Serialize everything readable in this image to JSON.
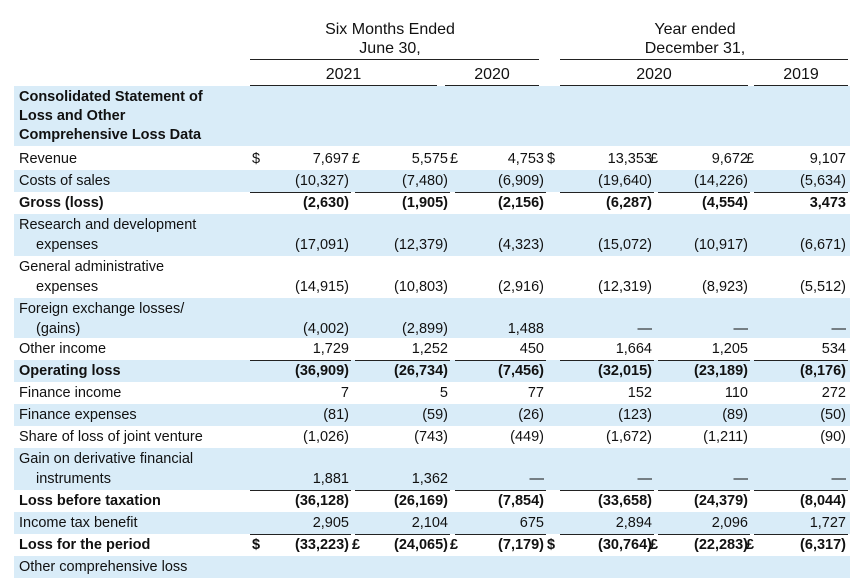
{
  "headers": {
    "group1_line1": "Six Months Ended",
    "group1_line2": "June 30,",
    "group2_line1": "Year ended",
    "group2_line2": "December 31,",
    "years": [
      "2021",
      "2020",
      "2020",
      "2019"
    ]
  },
  "section_title": [
    "Consolidated Statement of",
    "Loss and Other",
    "Comprehensive Loss Data"
  ],
  "rows": [
    {
      "label": [
        "Revenue"
      ],
      "bold": false,
      "vals": [
        "7,697",
        "5,575",
        "4,753",
        "13,353",
        "9,672",
        "9,107"
      ],
      "syms": [
        "$",
        "£",
        "£",
        "$",
        "£",
        "£"
      ]
    },
    {
      "label": [
        "Costs of sales"
      ],
      "bold": false,
      "vals": [
        "(10,327)",
        "(7,480)",
        "(6,909)",
        "(19,640)",
        "(14,226)",
        "(5,634)"
      ]
    },
    {
      "label": [
        "Gross (loss)"
      ],
      "bold": true,
      "vals": [
        "(2,630)",
        "(1,905)",
        "(2,156)",
        "(6,287)",
        "(4,554)",
        "3,473"
      ]
    },
    {
      "label": [
        "Research and development",
        "expenses"
      ],
      "bold": false,
      "vals": [
        "(17,091)",
        "(12,379)",
        "(4,323)",
        "(15,072)",
        "(10,917)",
        "(6,671)"
      ]
    },
    {
      "label": [
        "General administrative",
        "expenses"
      ],
      "bold": false,
      "vals": [
        "(14,915)",
        "(10,803)",
        "(2,916)",
        "(12,319)",
        "(8,923)",
        "(5,512)"
      ]
    },
    {
      "label": [
        "Foreign exchange losses/",
        "(gains)"
      ],
      "bold": false,
      "vals": [
        "(4,002)",
        "(2,899)",
        "1,488",
        "—",
        "—",
        "—"
      ]
    },
    {
      "label": [
        "Other income"
      ],
      "bold": false,
      "vals": [
        "1,729",
        "1,252",
        "450",
        "1,664",
        "1,205",
        "534"
      ]
    },
    {
      "label": [
        "Operating loss"
      ],
      "bold": true,
      "vals": [
        "(36,909)",
        "(26,734)",
        "(7,456)",
        "(32,015)",
        "(23,189)",
        "(8,176)"
      ]
    },
    {
      "label": [
        "Finance income"
      ],
      "bold": false,
      "vals": [
        "7",
        "5",
        "77",
        "152",
        "110",
        "272"
      ]
    },
    {
      "label": [
        "Finance expenses"
      ],
      "bold": false,
      "vals": [
        "(81)",
        "(59)",
        "(26)",
        "(123)",
        "(89)",
        "(50)"
      ]
    },
    {
      "label": [
        "Share of loss of joint venture"
      ],
      "bold": false,
      "vals": [
        "(1,026)",
        "(743)",
        "(449)",
        "(1,672)",
        "(1,211)",
        "(90)"
      ]
    },
    {
      "label": [
        "Gain on derivative financial",
        "instruments"
      ],
      "bold": false,
      "vals": [
        "1,881",
        "1,362",
        "—",
        "—",
        "—",
        "—"
      ]
    },
    {
      "label": [
        "Loss before taxation"
      ],
      "bold": true,
      "vals": [
        "(36,128)",
        "(26,169)",
        "(7,854)",
        "(33,658)",
        "(24,379)",
        "(8,044)"
      ]
    },
    {
      "label": [
        "Income tax benefit"
      ],
      "bold": false,
      "vals": [
        "2,905",
        "2,104",
        "675",
        "2,894",
        "2,096",
        "1,727"
      ]
    },
    {
      "label": [
        "Loss for the period"
      ],
      "bold": true,
      "vals": [
        "(33,223)",
        "(24,065)",
        "(7,179)",
        "(30,764)",
        "(22,283)",
        "(6,317)"
      ],
      "syms": [
        "$",
        "£",
        "£",
        "$",
        "£",
        "£"
      ]
    },
    {
      "label": [
        "Other comprehensive loss"
      ],
      "bold": false,
      "vals": []
    }
  ]
}
